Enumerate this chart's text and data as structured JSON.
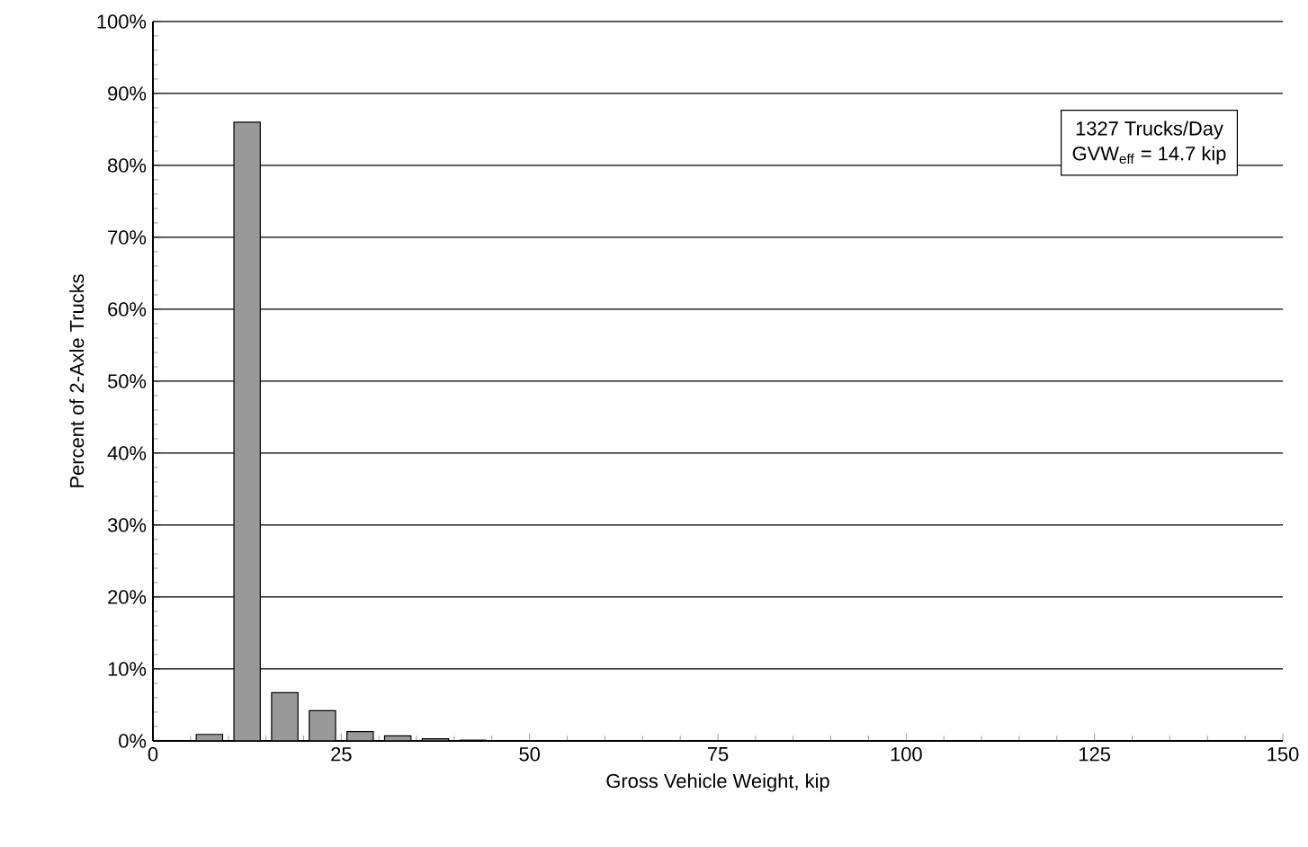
{
  "chart_data": {
    "type": "bar",
    "x": [
      7.5,
      12.5,
      17.5,
      22.5,
      27.5,
      32.5,
      37.5,
      42.5
    ],
    "values": [
      0.9,
      86,
      6.7,
      4.2,
      1.3,
      0.7,
      0.3,
      0.1
    ],
    "color": "#999999",
    "xlim": [
      0,
      150
    ],
    "xticks": [
      0,
      25,
      50,
      75,
      100,
      125,
      150
    ],
    "ylim": [
      0,
      100
    ],
    "yticks": [
      {
        "value": 0,
        "label": "0%"
      },
      {
        "value": 10,
        "label": "10%"
      },
      {
        "value": 20,
        "label": "20%"
      },
      {
        "value": 30,
        "label": "30%"
      },
      {
        "value": 40,
        "label": "40%"
      },
      {
        "value": 50,
        "label": "50%"
      },
      {
        "value": 60,
        "label": "60%"
      },
      {
        "value": 70,
        "label": "70%"
      },
      {
        "value": 80,
        "label": "80%"
      },
      {
        "value": 90,
        "label": "90%"
      },
      {
        "value": 100,
        "label": "100%"
      }
    ],
    "grid": "y",
    "xlabel": "Gross Vehicle Weight, kip",
    "ylabel": "Percent of 2-Axle Trucks",
    "annotations": [
      "1327 Trucks/Day",
      "GVW$_{eff}$ = 14.7 kip"
    ]
  }
}
